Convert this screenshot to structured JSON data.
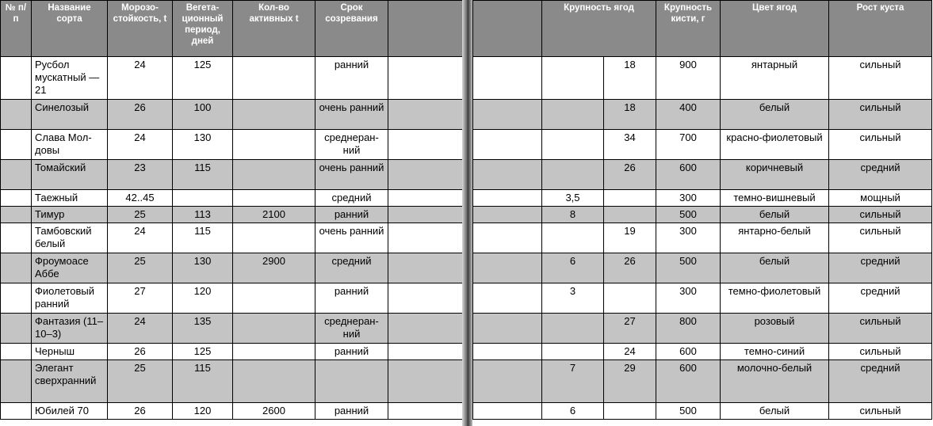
{
  "headers_left": [
    "№ п/п",
    "Название сорта",
    "Морозо­стойкость, t",
    "Вегета­ционный период, дней",
    "Кол-во активных t",
    "Срок созревания",
    ""
  ],
  "headers_right": [
    "",
    "Крупность ягод",
    "",
    "Крупность кисти, г",
    "Цвет ягод",
    "Рост куста"
  ],
  "rows": [
    {
      "shade": "w",
      "name": "Русбол мускат­ный — 21",
      "frost": "24",
      "veg": "125",
      "active": "",
      "term": "ранний",
      "size_a": "",
      "size_b": "18",
      "cluster": "900",
      "color": "янтарный",
      "growth": "сильный"
    },
    {
      "shade": "g",
      "name": "Синелозый",
      "frost": "26",
      "veg": "100",
      "active": "",
      "term": "очень ранний",
      "size_a": "",
      "size_b": "18",
      "cluster": "400",
      "color": "белый",
      "growth": "сильный"
    },
    {
      "shade": "w",
      "name": "Слава Мол­довы",
      "frost": "24",
      "veg": "130",
      "active": "",
      "term": "среднеран­ний",
      "size_a": "",
      "size_b": "34",
      "cluster": "700",
      "color": "красно-фиоле­товый",
      "growth": "сильный"
    },
    {
      "shade": "g",
      "name": "Томайский",
      "frost": "23",
      "veg": "115",
      "active": "",
      "term": "очень ранний",
      "size_a": "",
      "size_b": "26",
      "cluster": "600",
      "color": "коричневый",
      "growth": "средний"
    },
    {
      "shade": "w",
      "name": "Таежный",
      "frost": "42..45",
      "veg": "",
      "active": "",
      "term": "средний",
      "size_a": "3,5",
      "size_b": "",
      "cluster": "300",
      "color": "темно-вишневый",
      "growth": "мощный"
    },
    {
      "shade": "g",
      "name": "Тимур",
      "frost": "25",
      "veg": "113",
      "active": "2100",
      "term": "ранний",
      "size_a": "8",
      "size_b": "",
      "cluster": "500",
      "color": "белый",
      "growth": "сильный"
    },
    {
      "shade": "w",
      "name": "Тамбовский белый",
      "frost": "24",
      "veg": "115",
      "active": "",
      "term": "очень ранний",
      "size_a": "",
      "size_b": "19",
      "cluster": "300",
      "color": "янтарно-белый",
      "growth": "сильный"
    },
    {
      "shade": "g",
      "name": "Фроумоасе Аббе",
      "frost": "25",
      "veg": "130",
      "active": "2900",
      "term": "средний",
      "size_a": "6",
      "size_b": "26",
      "cluster": "500",
      "color": "белый",
      "growth": "средний"
    },
    {
      "shade": "w",
      "name": "Фиолето­вый ранний",
      "frost": "27",
      "veg": "120",
      "active": "",
      "term": "ранний",
      "size_a": "3",
      "size_b": "",
      "cluster": "300",
      "color": "темно-фиолето­вый",
      "growth": "средний"
    },
    {
      "shade": "g",
      "name": "Фантазия (11–10–3)",
      "frost": "24",
      "veg": "135",
      "active": "",
      "term": "среднеран­ний",
      "size_a": "",
      "size_b": "27",
      "cluster": "800",
      "color": "розовый",
      "growth": "сильный"
    },
    {
      "shade": "w",
      "name": "Черныш",
      "frost": "26",
      "veg": "125",
      "active": "",
      "term": "ранний",
      "size_a": "",
      "size_b": "24",
      "cluster": "600",
      "color": "темно-синий",
      "growth": "сильный"
    },
    {
      "shade": "g",
      "name": "Элегант сверхран­ний",
      "frost": "25",
      "veg": "115",
      "active": "",
      "term": "",
      "size_a": "7",
      "size_b": "29",
      "cluster": "600",
      "color": "молочно-белый",
      "growth": "средний"
    },
    {
      "shade": "w",
      "name": "Юбилей 70",
      "frost": "26",
      "veg": "120",
      "active": "2600",
      "term": "ранний",
      "size_a": "6",
      "size_b": "",
      "cluster": "500",
      "color": "белый",
      "growth": "сильный"
    }
  ]
}
